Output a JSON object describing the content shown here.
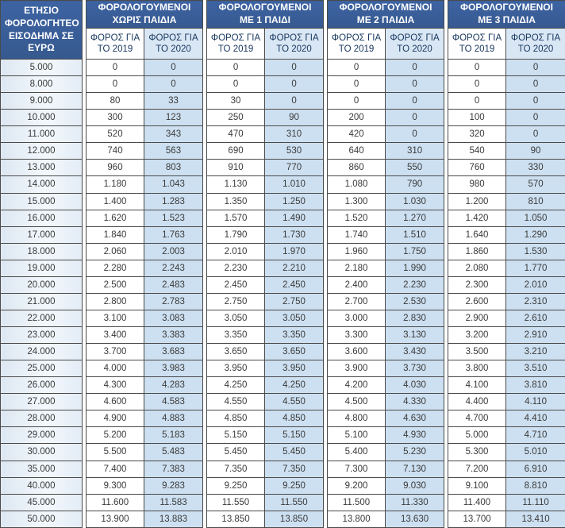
{
  "colors": {
    "header_bg": "#3a5f9e",
    "header_text": "#ffffff",
    "subheader_text": "#17365d",
    "subheader_2020_bg": "#d9e7f5",
    "column_2020_bg": "#cde0f1",
    "income_column_bg": "#e9f0f8",
    "border": "#4a4a4a",
    "data_text": "#3a3a3a"
  },
  "chart_data": {
    "type": "table",
    "income_column_header": "ΕΤΗΣΙΟ ΦΟΡΟΛΟΓΗΤΕΟ ΕΙΣΟΔΗΜΑ ΣΕ ΕΥΡΩ",
    "column_groups": [
      "ΦΟΡΟΛΟΓΟΥΜΕΝΟΙ ΧΩΡΙΣ ΠΑΙΔΙΑ",
      "ΦΟΡΟΛΟΓΟΥΜΕΝΟΙ ΜΕ 1 ΠΑΙΔΙ",
      "ΦΟΡΟΛΟΓΟΥΜΕΝΟΙ ΜΕ 2 ΠΑΙΔΙΑ",
      "ΦΟΡΟΛΟΓΟΥΜΕΝΟΙ ΜΕ 3 ΠΑΙΔΙΑ"
    ],
    "sub_columns": [
      "ΦΟΡΟΣ ΓΙΑ ΤΟ 2019",
      "ΦΟΡΟΣ ΓΙΑ ΤΟ 2020"
    ],
    "rows": [
      {
        "income": "5.000",
        "values": [
          "0",
          "0",
          "0",
          "0",
          "0",
          "0",
          "0",
          "0"
        ]
      },
      {
        "income": "8.000",
        "values": [
          "0",
          "0",
          "0",
          "0",
          "0",
          "0",
          "0",
          "0"
        ]
      },
      {
        "income": "9.000",
        "values": [
          "80",
          "33",
          "30",
          "0",
          "0",
          "0",
          "0",
          "0"
        ]
      },
      {
        "income": "10.000",
        "values": [
          "300",
          "123",
          "250",
          "90",
          "200",
          "0",
          "100",
          "0"
        ]
      },
      {
        "income": "11.000",
        "values": [
          "520",
          "343",
          "470",
          "310",
          "420",
          "0",
          "320",
          "0"
        ]
      },
      {
        "income": "12.000",
        "values": [
          "740",
          "563",
          "690",
          "530",
          "640",
          "310",
          "540",
          "90"
        ]
      },
      {
        "income": "13.000",
        "values": [
          "960",
          "803",
          "910",
          "770",
          "860",
          "550",
          "760",
          "330"
        ]
      },
      {
        "income": "14.000",
        "values": [
          "1.180",
          "1.043",
          "1.130",
          "1.010",
          "1.080",
          "790",
          "980",
          "570"
        ]
      },
      {
        "income": "15.000",
        "values": [
          "1.400",
          "1.283",
          "1.350",
          "1.250",
          "1.300",
          "1.030",
          "1.200",
          "810"
        ]
      },
      {
        "income": "16.000",
        "values": [
          "1.620",
          "1.523",
          "1.570",
          "1.490",
          "1.520",
          "1.270",
          "1.420",
          "1.050"
        ]
      },
      {
        "income": "17.000",
        "values": [
          "1.840",
          "1.763",
          "1.790",
          "1.730",
          "1.740",
          "1.510",
          "1.640",
          "1.290"
        ]
      },
      {
        "income": "18.000",
        "values": [
          "2.060",
          "2.003",
          "2.010",
          "1.970",
          "1.960",
          "1.750",
          "1.860",
          "1.530"
        ]
      },
      {
        "income": "19.000",
        "values": [
          "2.280",
          "2.243",
          "2.230",
          "2.210",
          "2.180",
          "1.990",
          "2.080",
          "1.770"
        ]
      },
      {
        "income": "20.000",
        "values": [
          "2.500",
          "2.483",
          "2.450",
          "2.450",
          "2.400",
          "2.230",
          "2.300",
          "2.010"
        ]
      },
      {
        "income": "21.000",
        "values": [
          "2.800",
          "2.783",
          "2.750",
          "2.750",
          "2.700",
          "2.530",
          "2.600",
          "2.310"
        ]
      },
      {
        "income": "22.000",
        "values": [
          "3.100",
          "3.083",
          "3.050",
          "3.050",
          "3.000",
          "2.830",
          "2.900",
          "2.610"
        ]
      },
      {
        "income": "23.000",
        "values": [
          "3.400",
          "3.383",
          "3.350",
          "3.350",
          "3.300",
          "3.130",
          "3.200",
          "2.910"
        ]
      },
      {
        "income": "24.000",
        "values": [
          "3.700",
          "3.683",
          "3.650",
          "3.650",
          "3.600",
          "3.430",
          "3.500",
          "3.210"
        ]
      },
      {
        "income": "25.000",
        "values": [
          "4.000",
          "3.983",
          "3.950",
          "3.950",
          "3.900",
          "3.730",
          "3.800",
          "3.510"
        ]
      },
      {
        "income": "26.000",
        "values": [
          "4.300",
          "4.283",
          "4.250",
          "4.250",
          "4.200",
          "4.030",
          "4.100",
          "3.810"
        ]
      },
      {
        "income": "27.000",
        "values": [
          "4.600",
          "4.583",
          "4.550",
          "4.550",
          "4.500",
          "4.330",
          "4.400",
          "4.110"
        ]
      },
      {
        "income": "28.000",
        "values": [
          "4.900",
          "4.883",
          "4.850",
          "4.850",
          "4.800",
          "4.630",
          "4.700",
          "4.410"
        ]
      },
      {
        "income": "29.000",
        "values": [
          "5.200",
          "5.183",
          "5.150",
          "5.150",
          "5.100",
          "4.930",
          "5.000",
          "4.710"
        ]
      },
      {
        "income": "30.000",
        "values": [
          "5.500",
          "5.483",
          "5.450",
          "5.450",
          "5.400",
          "5.230",
          "5.300",
          "5.010"
        ]
      },
      {
        "income": "35.000",
        "values": [
          "7.400",
          "7.383",
          "7.350",
          "7.350",
          "7.300",
          "7.130",
          "7.200",
          "6.910"
        ]
      },
      {
        "income": "40.000",
        "values": [
          "9.300",
          "9.283",
          "9.250",
          "9.250",
          "9.200",
          "9.030",
          "9.100",
          "8.810"
        ]
      },
      {
        "income": "45.000",
        "values": [
          "11.600",
          "11.583",
          "11.550",
          "11.550",
          "11.500",
          "11.330",
          "11.400",
          "11.110"
        ]
      },
      {
        "income": "50.000",
        "values": [
          "13.900",
          "13.883",
          "13.850",
          "13.850",
          "13.800",
          "13.630",
          "13.700",
          "13.410"
        ]
      }
    ]
  }
}
